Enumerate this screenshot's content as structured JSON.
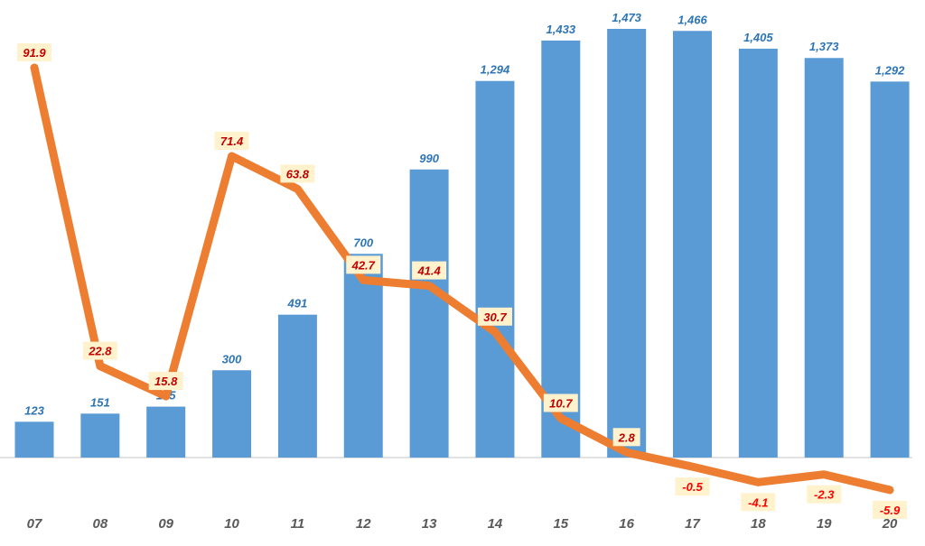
{
  "chart_data": {
    "type": "bar+line",
    "categories": [
      "07",
      "08",
      "09",
      "10",
      "11",
      "12",
      "13",
      "14",
      "15",
      "16",
      "17",
      "18",
      "19",
      "20"
    ],
    "series": [
      {
        "type": "bar",
        "values": [
          123,
          151,
          175,
          300,
          491,
          700,
          990,
          1294,
          1433,
          1473,
          1466,
          1405,
          1373,
          1292
        ],
        "color": "#5b9bd5",
        "label_color": "#2e75b6"
      },
      {
        "type": "line",
        "values": [
          91.9,
          22.8,
          15.8,
          71.4,
          63.8,
          42.7,
          41.4,
          30.7,
          10.7,
          2.8,
          -0.5,
          -4.1,
          -2.3,
          -5.9
        ],
        "color": "#ed7d31",
        "label_color_positive": "#c00000",
        "label_color_negative": "#ff0000",
        "label_background": "#fff2cc"
      }
    ],
    "bar_axis_range": [
      0,
      1473
    ],
    "line_axis_range": [
      -5.9,
      91.9
    ],
    "grid": false,
    "legend": "none",
    "tick_label_color": "#595959"
  }
}
